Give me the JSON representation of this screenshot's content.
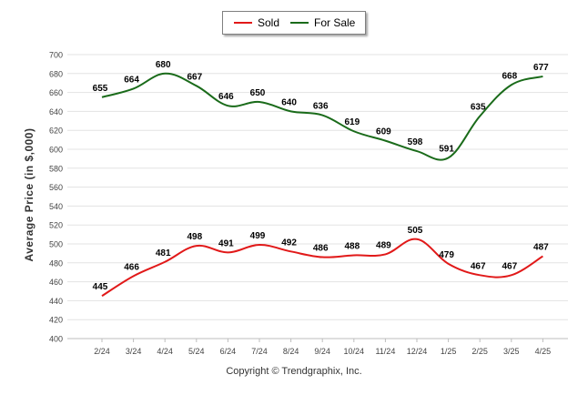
{
  "legend": {
    "sold_label": "Sold",
    "forsale_label": "For Sale"
  },
  "copyright": "Copyright © Trendgraphix, Inc.",
  "chart_data": {
    "type": "line",
    "categories": [
      "2/24",
      "3/24",
      "4/24",
      "5/24",
      "6/24",
      "7/24",
      "8/24",
      "9/24",
      "10/24",
      "11/24",
      "12/24",
      "1/25",
      "2/25",
      "3/25",
      "4/25"
    ],
    "series": [
      {
        "name": "Sold",
        "color": "#e11919",
        "values": [
          445,
          466,
          481,
          498,
          491,
          499,
          492,
          486,
          488,
          489,
          505,
          479,
          467,
          467,
          487
        ]
      },
      {
        "name": "For Sale",
        "color": "#1a6b1a",
        "values": [
          655,
          664,
          680,
          667,
          646,
          650,
          640,
          636,
          619,
          609,
          598,
          591,
          635,
          668,
          677
        ]
      }
    ],
    "title": "",
    "xlabel": "",
    "ylabel": "Average Price (in $,000)",
    "ylim": [
      400,
      700
    ],
    "yticks": [
      400,
      420,
      440,
      460,
      480,
      500,
      520,
      540,
      560,
      580,
      600,
      620,
      640,
      660,
      680,
      700
    ],
    "grid": true,
    "legend_position": "top-center"
  }
}
